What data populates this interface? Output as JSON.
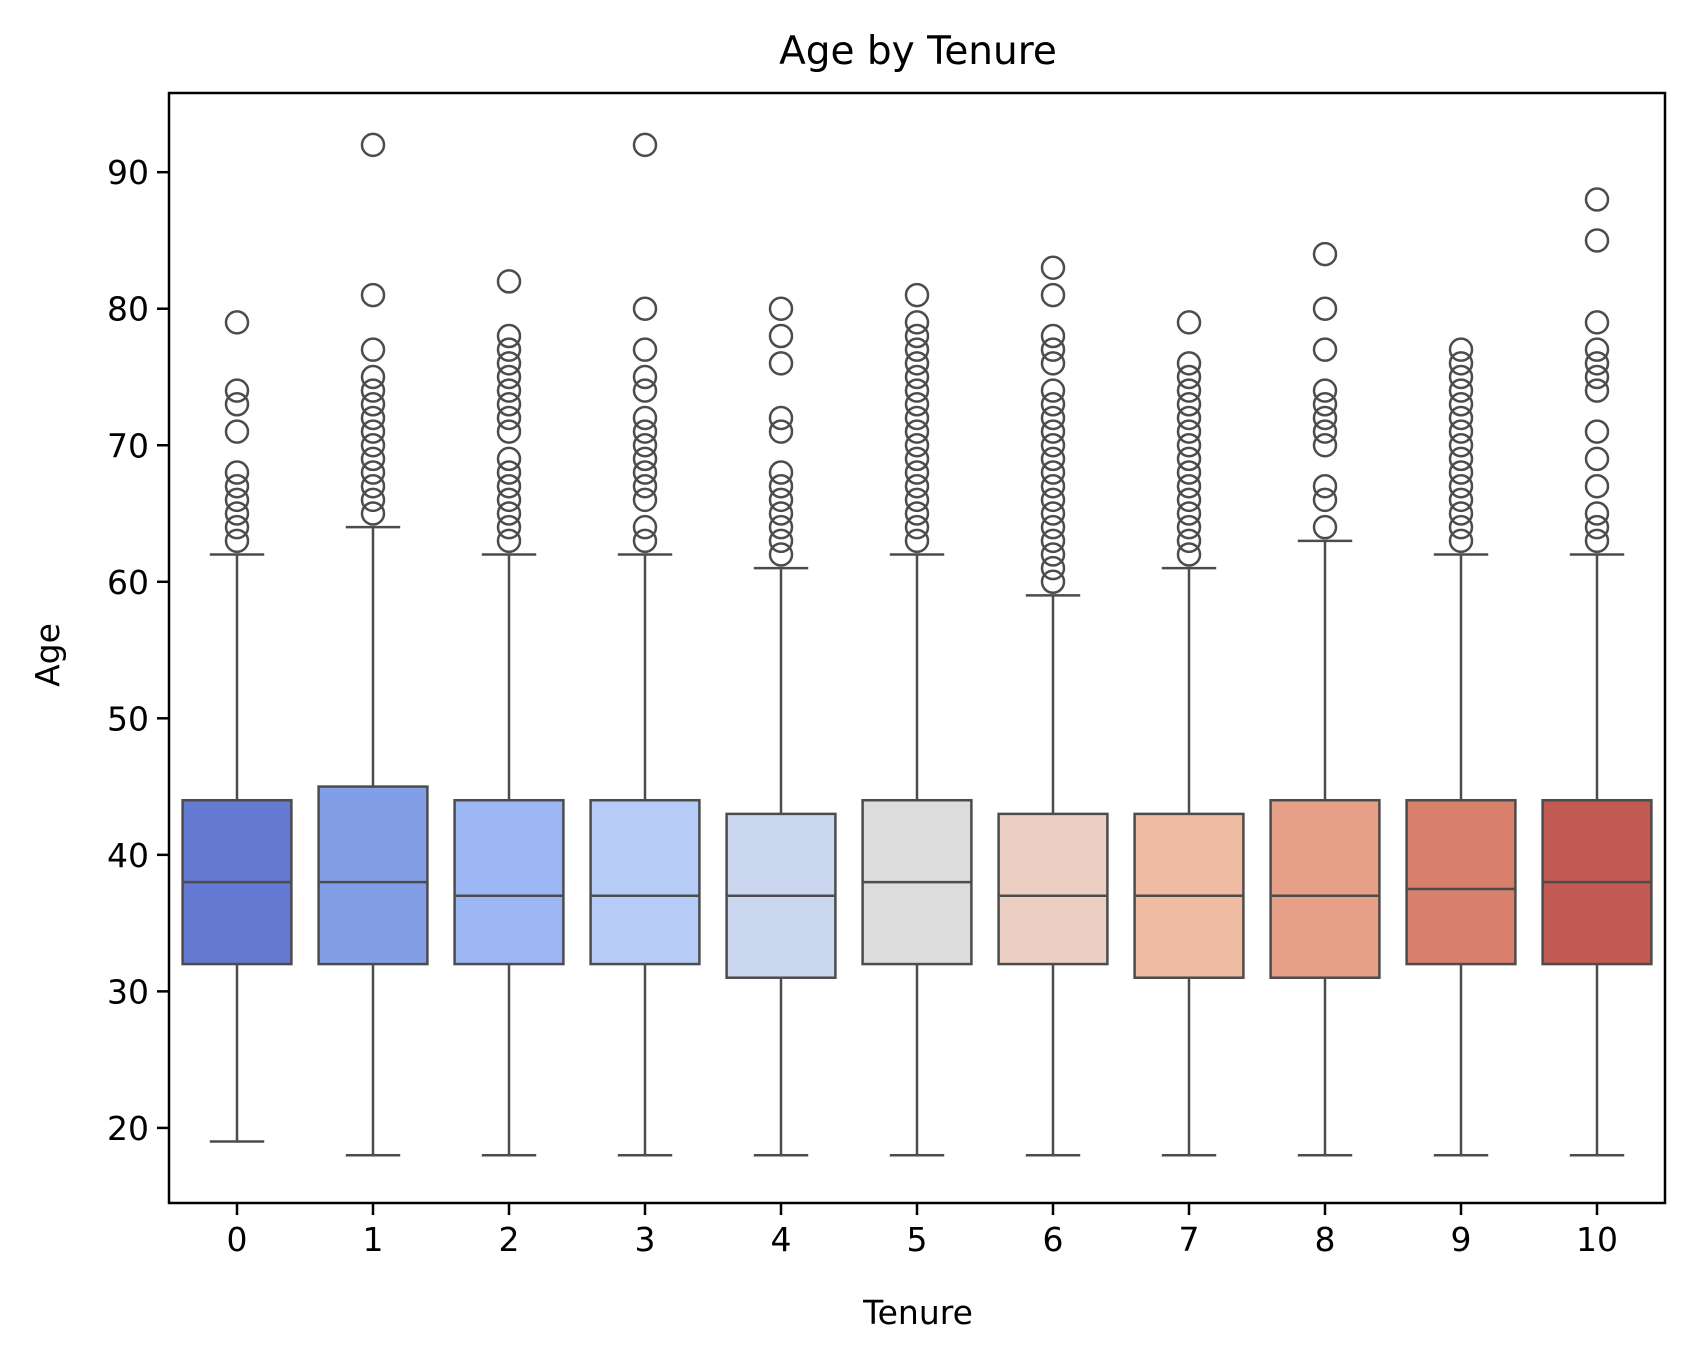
{
  "chart_data": {
    "type": "box",
    "title": "Age by Tenure",
    "xlabel": "Tenure",
    "ylabel": "Age",
    "ylim": [
      14.5,
      95.8
    ],
    "yticks": [
      20,
      30,
      40,
      50,
      60,
      70,
      80,
      90
    ],
    "grid": false,
    "categories": [
      "0",
      "1",
      "2",
      "3",
      "4",
      "5",
      "6",
      "7",
      "8",
      "9",
      "10"
    ],
    "boxes": [
      {
        "category": "0",
        "color": "#6479d1",
        "whisker_low": 19,
        "q1": 32,
        "median": 38,
        "q3": 44,
        "whisker_high": 62,
        "outliers": [
          63,
          64,
          65,
          66,
          67,
          68,
          71,
          73,
          74,
          79
        ]
      },
      {
        "category": "1",
        "color": "#829ee6",
        "whisker_low": 18,
        "q1": 32,
        "median": 38,
        "q3": 45,
        "whisker_high": 64,
        "outliers": [
          65,
          66,
          67,
          68,
          69,
          70,
          71,
          72,
          73,
          74,
          75,
          77,
          81,
          92
        ]
      },
      {
        "category": "2",
        "color": "#9bb6f3",
        "whisker_low": 18,
        "q1": 32,
        "median": 37,
        "q3": 44,
        "whisker_high": 62,
        "outliers": [
          63,
          64,
          65,
          66,
          67,
          68,
          69,
          71,
          72,
          73,
          74,
          75,
          76,
          77,
          78,
          82
        ]
      },
      {
        "category": "3",
        "color": "#b6cbf6",
        "whisker_low": 18,
        "q1": 32,
        "median": 37,
        "q3": 44,
        "whisker_high": 62,
        "outliers": [
          63,
          64,
          66,
          67,
          68,
          69,
          70,
          71,
          72,
          74,
          75,
          77,
          80,
          92
        ]
      },
      {
        "category": "4",
        "color": "#cbd7ef",
        "whisker_low": 18,
        "q1": 31,
        "median": 37,
        "q3": 43,
        "whisker_high": 61,
        "outliers": [
          62,
          63,
          64,
          65,
          66,
          67,
          68,
          71,
          72,
          76,
          78,
          80
        ]
      },
      {
        "category": "5",
        "color": "#dcdcdc",
        "whisker_low": 18,
        "q1": 32,
        "median": 38,
        "q3": 44,
        "whisker_high": 62,
        "outliers": [
          63,
          64,
          65,
          66,
          67,
          68,
          69,
          70,
          71,
          72,
          73,
          74,
          75,
          76,
          77,
          78,
          79,
          81
        ]
      },
      {
        "category": "6",
        "color": "#eccfc3",
        "whisker_low": 18,
        "q1": 32,
        "median": 37,
        "q3": 43,
        "whisker_high": 59,
        "outliers": [
          60,
          61,
          62,
          63,
          64,
          65,
          66,
          67,
          68,
          69,
          70,
          71,
          72,
          73,
          74,
          76,
          77,
          78,
          81,
          83
        ]
      },
      {
        "category": "7",
        "color": "#efbba3",
        "whisker_low": 18,
        "q1": 31,
        "median": 37,
        "q3": 43,
        "whisker_high": 61,
        "outliers": [
          62,
          63,
          64,
          65,
          66,
          67,
          68,
          69,
          70,
          71,
          72,
          73,
          74,
          75,
          76,
          79
        ]
      },
      {
        "category": "8",
        "color": "#e6a088",
        "whisker_low": 18,
        "q1": 31,
        "median": 37,
        "q3": 44,
        "whisker_high": 63,
        "outliers": [
          64,
          66,
          67,
          70,
          71,
          72,
          73,
          74,
          77,
          80,
          84
        ]
      },
      {
        "category": "9",
        "color": "#d9806d",
        "whisker_low": 18,
        "q1": 32,
        "median": 37.5,
        "q3": 44,
        "whisker_high": 62,
        "outliers": [
          63,
          64,
          65,
          66,
          67,
          68,
          69,
          70,
          71,
          72,
          73,
          74,
          75,
          76,
          77
        ]
      },
      {
        "category": "10",
        "color": "#c05a53",
        "whisker_low": 18,
        "q1": 32,
        "median": 38,
        "q3": 44,
        "whisker_high": 62,
        "outliers": [
          63,
          64,
          65,
          67,
          69,
          71,
          74,
          75,
          76,
          77,
          79,
          85,
          88
        ]
      }
    ],
    "line_color": "#4c4c4c"
  }
}
